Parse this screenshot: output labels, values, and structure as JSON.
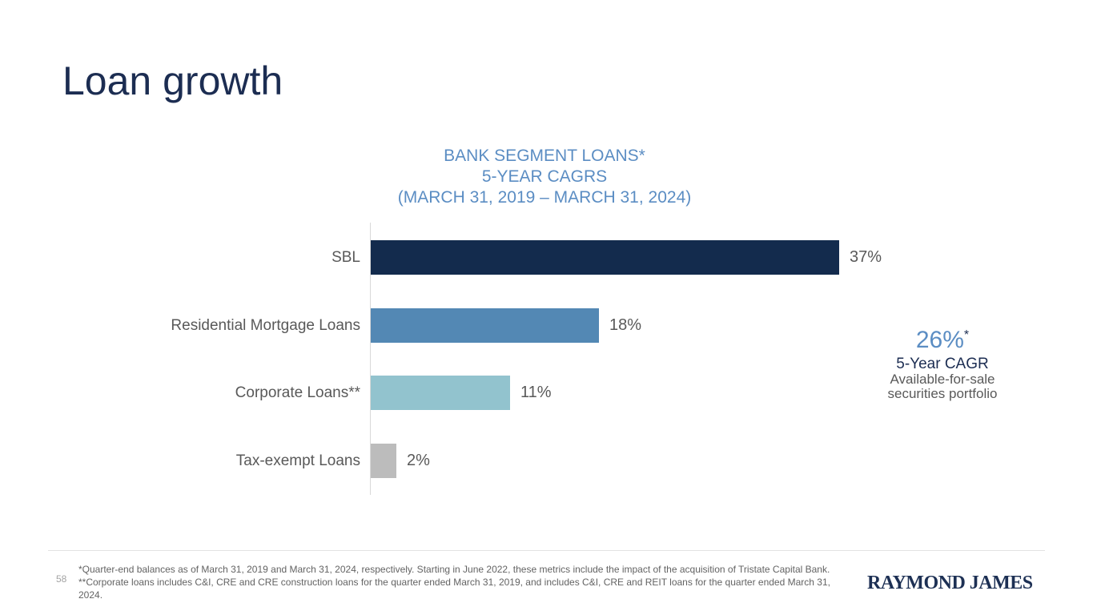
{
  "slide": {
    "title": "Loan growth",
    "page_number": "58",
    "footnote": "*Quarter-end balances as of March 31, 2019 and March 31, 2024, respectively. Starting in June 2022, these metrics include the impact of the acquisition of Tristate Capital Bank. **Corporate loans includes C&I, CRE and CRE construction loans for the quarter ended March 31, 2019, and includes C&I, CRE and REIT loans for the quarter ended March 31, 2024.",
    "logo_text": "RAYMOND JAMES"
  },
  "chart_data": {
    "type": "bar",
    "orientation": "horizontal",
    "title": "BANK SEGMENT LOANS* 5-YEAR CAGRS (MARCH 31, 2019 – MARCH 31, 2024)",
    "title_lines": {
      "line1": "BANK SEGMENT LOANS*",
      "line2": "5-YEAR CAGRS",
      "line3": "(MARCH 31, 2019 – MARCH 31, 2024)"
    },
    "categories": [
      "SBL",
      "Residential Mortgage Loans",
      "Corporate Loans**",
      "Tax-exempt Loans"
    ],
    "values": [
      37,
      18,
      11,
      2
    ],
    "value_labels": [
      "37%",
      "18%",
      "11%",
      "2%"
    ],
    "bar_colors": [
      "#132b4d",
      "#5388b4",
      "#92c3ce",
      "#bcbcbc"
    ],
    "xlim": [
      0,
      40
    ],
    "grid": false,
    "legend": false,
    "label_color": "#595959",
    "title_color": "#5b8dc3"
  },
  "annotation": {
    "value": "26%",
    "asterisk": "*",
    "line1": "5-Year CAGR",
    "line2": "Available-for-sale",
    "line3": "securities portfolio"
  },
  "colors": {
    "slide_title": "#1c2d52",
    "chart_title_blue": "#5b8dc3",
    "axis_line": "#d9d9d9",
    "logo_navy": "#1d3054"
  }
}
